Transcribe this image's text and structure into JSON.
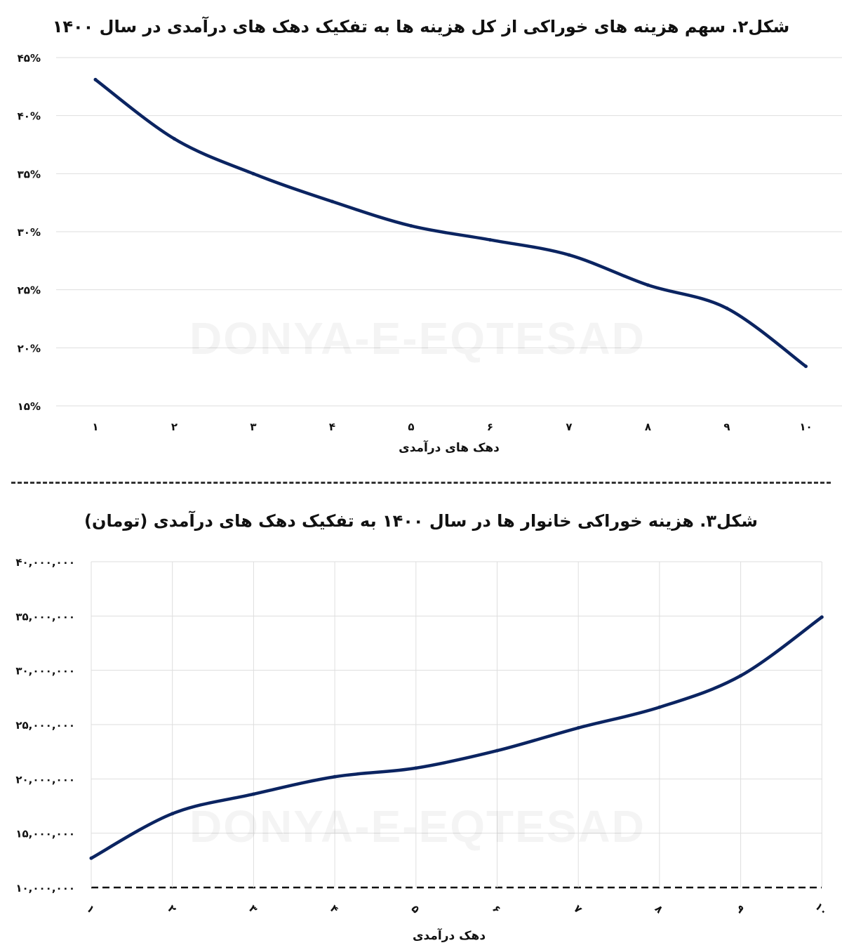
{
  "watermark": "DONYA-E-EQTESAD",
  "colors": {
    "line": "#0b2461",
    "grid": "#dedede",
    "axis": "#111111"
  },
  "separator": {
    "style": "dashed"
  },
  "chart_data": [
    {
      "type": "line",
      "title": "شکل۲. سهم  هزینه های خوراکی از کل هزینه ها به تفکیک دهک های درآمدی در سال ۱۴۰۰",
      "xlabel": "دهک های درآمدی",
      "ylabel": "",
      "categories": [
        "۱",
        "۲",
        "۳",
        "۴",
        "۵",
        "۶",
        "۷",
        "۸",
        "۹",
        "۱۰"
      ],
      "values": [
        43.1,
        38.0,
        35.0,
        32.6,
        30.5,
        29.3,
        28.0,
        25.4,
        23.4,
        18.4
      ],
      "ylim": [
        15,
        45
      ],
      "y_ticks": [
        "۱۵%",
        "۲۰%",
        "۲۵%",
        "۳۰%",
        "۳۵%",
        "۴۰%",
        "۴۵%"
      ],
      "grid": "horizontal",
      "curve": "smooth"
    },
    {
      "type": "line",
      "title": "شکل۳. هزینه خوراکی خانوار ها در سال ۱۴۰۰ به تفکیک دهک های درآمدی (تومان)",
      "xlabel": "دهک درآمدی",
      "ylabel": "",
      "categories": [
        "۱",
        "۲",
        "۳",
        "۴",
        "۵",
        "۶",
        "۷",
        "۸",
        "۹",
        "۱۰"
      ],
      "values": [
        12700000,
        16800000,
        18600000,
        20200000,
        21000000,
        22600000,
        24700000,
        26600000,
        29500000,
        34900000
      ],
      "ylim": [
        10000000,
        40000000
      ],
      "y_ticks": [
        "۱۰,۰۰۰,۰۰۰",
        "۱۵,۰۰۰,۰۰۰",
        "۲۰,۰۰۰,۰۰۰",
        "۲۵,۰۰۰,۰۰۰",
        "۳۰,۰۰۰,۰۰۰",
        "۳۵,۰۰۰,۰۰۰",
        "۴۰,۰۰۰,۰۰۰"
      ],
      "grid": "both",
      "curve": "smooth"
    }
  ]
}
